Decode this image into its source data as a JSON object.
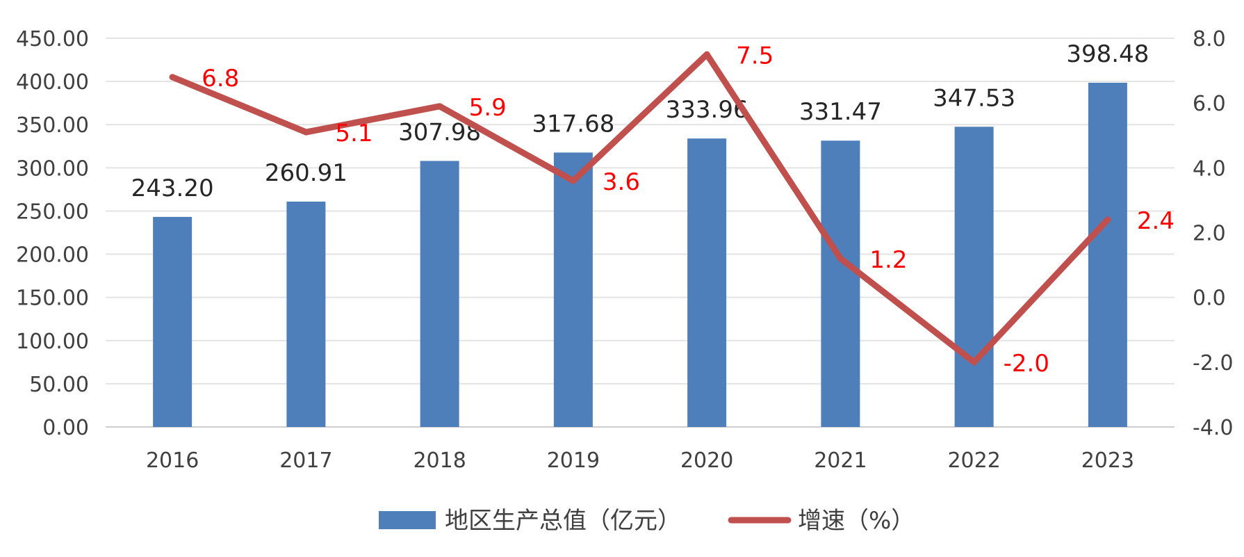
{
  "chart_data": {
    "type": "bar",
    "combo": "bar+line",
    "categories": [
      "2016",
      "2017",
      "2018",
      "2019",
      "2020",
      "2021",
      "2022",
      "2023"
    ],
    "series": [
      {
        "name": "地区生产总值（亿元）",
        "type": "bar",
        "axis": "left",
        "values": [
          243.2,
          260.91,
          307.98,
          317.68,
          333.96,
          331.47,
          347.53,
          398.48
        ],
        "labels": [
          "243.20",
          "260.91",
          "307.98",
          "317.68",
          "333.96",
          "331.47",
          "347.53",
          "398.48"
        ],
        "color": "#4E7FBB"
      },
      {
        "name": "增速（%）",
        "type": "line",
        "axis": "right",
        "values": [
          6.8,
          5.1,
          5.9,
          3.6,
          7.5,
          1.2,
          -2.0,
          2.4
        ],
        "labels": [
          "6.8",
          "5.1",
          "5.9",
          "3.6",
          "7.5",
          "1.2",
          "-2.0",
          "2.4"
        ],
        "color": "#C0504D",
        "label_color": "#FF0000"
      }
    ],
    "y_left": {
      "range": [
        0,
        450
      ],
      "ticks": [
        "0.00",
        "50.00",
        "100.00",
        "150.00",
        "200.00",
        "250.00",
        "300.00",
        "350.00",
        "400.00",
        "450.00"
      ]
    },
    "y_right": {
      "range": [
        -4,
        8
      ],
      "ticks": [
        "-4.0",
        "-2.0",
        "0.0",
        "2.0",
        "4.0",
        "6.0",
        "8.0"
      ]
    },
    "grid": true,
    "legend_position": "bottom"
  }
}
